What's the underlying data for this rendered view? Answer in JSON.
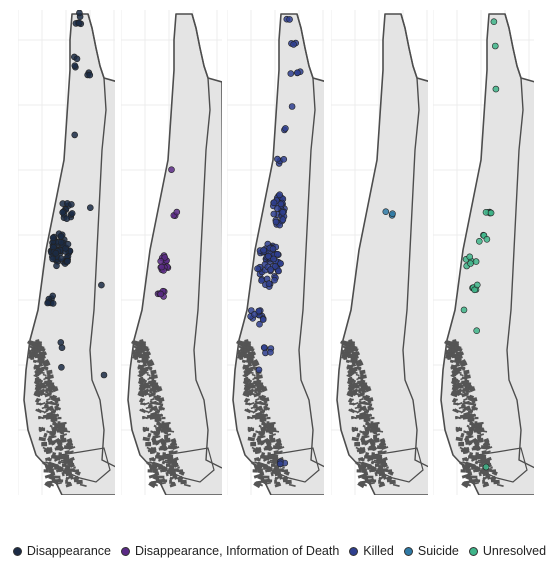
{
  "panels": [
    {
      "category": "Disappearance",
      "color": "#1b2b45"
    },
    {
      "category": "Disappearance, Information of Death",
      "color": "#5b2a86"
    },
    {
      "category": "Killed",
      "color": "#2f3f8f"
    },
    {
      "category": "Suicide",
      "color": "#2f7aa6"
    },
    {
      "category": "Unresolved",
      "color": "#3fb58a"
    }
  ],
  "legend": {
    "items": [
      {
        "label": "Disappearance",
        "color": "#1b2b45"
      },
      {
        "label": "Disappearance, Information of Death",
        "color": "#5b2a86"
      },
      {
        "label": "Killed",
        "color": "#2f3f8f"
      },
      {
        "label": "Suicide",
        "color": "#2f7aa6"
      },
      {
        "label": "Unresolved",
        "color": "#3fb58a"
      }
    ]
  },
  "map_style": {
    "land_fill": "#e4e4e4",
    "border": "#4d4d4d",
    "grid": "#ececec",
    "background": "#ffffff"
  }
}
